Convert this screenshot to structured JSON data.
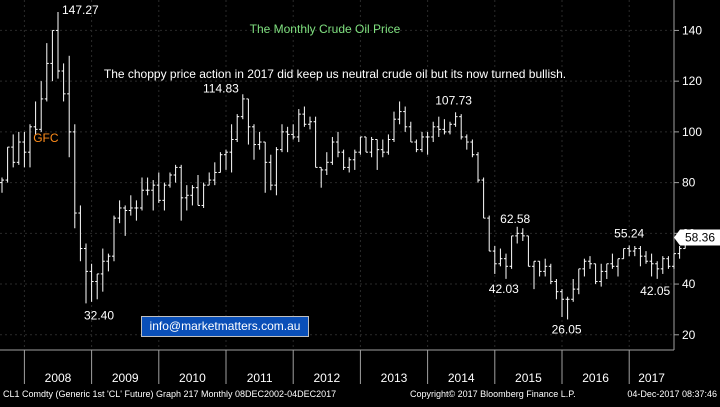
{
  "chart_data": {
    "type": "line",
    "title": "The Monthly Crude Oil Price",
    "subtitle": "The choppy price action in 2017 did keep us neutral crude oil but its now turned bullish.",
    "x_ticks": [
      "2008",
      "2009",
      "2010",
      "2011",
      "2012",
      "2013",
      "2014",
      "2015",
      "2016",
      "2017"
    ],
    "y_ticks": [
      20,
      40,
      60,
      80,
      100,
      120,
      140
    ],
    "ylim": [
      14,
      152
    ],
    "xlim": [
      "2007-09",
      "2017-12"
    ],
    "grid": true,
    "last_value": "58.36",
    "colors": {
      "price": "#ffffff",
      "title": "#7fe07f",
      "gfc": "#ff8c1a",
      "last_box": "#ffffff",
      "email_box": "#0a4fb8"
    },
    "annotations": [
      {
        "text": "147.27",
        "x": "2008-07",
        "y": 147.27
      },
      {
        "text": "GFC",
        "x": "2008-04",
        "y": 96
      },
      {
        "text": "32.40",
        "x": "2008-12",
        "y": 32.4
      },
      {
        "text": "114.83",
        "x": "2011-04",
        "y": 114.83
      },
      {
        "text": "107.73",
        "x": "2014-06",
        "y": 107.73
      },
      {
        "text": "62.58",
        "x": "2015-05",
        "y": 62.58
      },
      {
        "text": "42.03",
        "x": "2015-01",
        "y": 42.03
      },
      {
        "text": "55.24",
        "x": "2017-01",
        "y": 55.24
      },
      {
        "text": "26.05",
        "x": "2016-02",
        "y": 26.05
      },
      {
        "text": "42.05",
        "x": "2017-06",
        "y": 42.05
      }
    ],
    "series": [
      {
        "values": [
          [
            "2007-09",
            80,
            82,
            76,
            81
          ],
          [
            "2007-10",
            81,
            94,
            80,
            94
          ],
          [
            "2007-11",
            94,
            99,
            86,
            88
          ],
          [
            "2007-12",
            88,
            100,
            87,
            96
          ],
          [
            "2008-01",
            96,
            100,
            86,
            92
          ],
          [
            "2008-02",
            92,
            103,
            86,
            102
          ],
          [
            "2008-03",
            102,
            112,
            99,
            101
          ],
          [
            "2008-04",
            101,
            120,
            100,
            113
          ],
          [
            "2008-05",
            113,
            135,
            112,
            127
          ],
          [
            "2008-06",
            127,
            140,
            120,
            140
          ],
          [
            "2008-07",
            140,
            147.27,
            121,
            124
          ],
          [
            "2008-08",
            124,
            127,
            112,
            115
          ],
          [
            "2008-09",
            115,
            130,
            90,
            100
          ],
          [
            "2008-10",
            100,
            103,
            62,
            68
          ],
          [
            "2008-11",
            68,
            71,
            49,
            54
          ],
          [
            "2008-12",
            54,
            56,
            32.4,
            45
          ],
          [
            "2009-01",
            45,
            48,
            33,
            41
          ],
          [
            "2009-02",
            41,
            44,
            34,
            44
          ],
          [
            "2009-03",
            44,
            54,
            37,
            49
          ],
          [
            "2009-04",
            49,
            52,
            45,
            51
          ],
          [
            "2009-05",
            51,
            67,
            49,
            66
          ],
          [
            "2009-06",
            66,
            73,
            64,
            70
          ],
          [
            "2009-07",
            70,
            71,
            59,
            69
          ],
          [
            "2009-08",
            69,
            75,
            67,
            70
          ],
          [
            "2009-09",
            70,
            73,
            65,
            70
          ],
          [
            "2009-10",
            70,
            82,
            69,
            77
          ],
          [
            "2009-11",
            77,
            82,
            75,
            77
          ],
          [
            "2009-12",
            77,
            81,
            69,
            79
          ],
          [
            "2010-01",
            79,
            84,
            72,
            73
          ],
          [
            "2010-02",
            73,
            80,
            69,
            79
          ],
          [
            "2010-03",
            79,
            84,
            78,
            83
          ],
          [
            "2010-04",
            83,
            87,
            80,
            86
          ],
          [
            "2010-05",
            86,
            87,
            65,
            74
          ],
          [
            "2010-06",
            74,
            79,
            69,
            75
          ],
          [
            "2010-07",
            75,
            79,
            71,
            78
          ],
          [
            "2010-08",
            78,
            83,
            71,
            71
          ],
          [
            "2010-09",
            71,
            80,
            70,
            79
          ],
          [
            "2010-10",
            79,
            84,
            79,
            81
          ],
          [
            "2010-11",
            81,
            88,
            79,
            84
          ],
          [
            "2010-12",
            84,
            92,
            84,
            91
          ],
          [
            "2011-01",
            91,
            93,
            85,
            92
          ],
          [
            "2011-02",
            92,
            103,
            84,
            97
          ],
          [
            "2011-03",
            97,
            107,
            96,
            106
          ],
          [
            "2011-04",
            106,
            114.83,
            105,
            113
          ],
          [
            "2011-05",
            113,
            113,
            95,
            102
          ],
          [
            "2011-06",
            102,
            103,
            89,
            95
          ],
          [
            "2011-07",
            95,
            100,
            93,
            96
          ],
          [
            "2011-08",
            96,
            96,
            76,
            88
          ],
          [
            "2011-09",
            88,
            91,
            77,
            79
          ],
          [
            "2011-10",
            79,
            94,
            75,
            93
          ],
          [
            "2011-11",
            93,
            103,
            92,
            100
          ],
          [
            "2011-12",
            100,
            102,
            92,
            99
          ],
          [
            "2012-01",
            99,
            103,
            97,
            98
          ],
          [
            "2012-02",
            98,
            109,
            96,
            107
          ],
          [
            "2012-03",
            107,
            110,
            102,
            103
          ],
          [
            "2012-04",
            103,
            106,
            101,
            104
          ],
          [
            "2012-05",
            104,
            106,
            86,
            86
          ],
          [
            "2012-06",
            86,
            86,
            78,
            85
          ],
          [
            "2012-07",
            85,
            92,
            83,
            88
          ],
          [
            "2012-08",
            88,
            98,
            87,
            96
          ],
          [
            "2012-09",
            96,
            100,
            90,
            92
          ],
          [
            "2012-10",
            92,
            93,
            85,
            86
          ],
          [
            "2012-11",
            86,
            90,
            84,
            89
          ],
          [
            "2012-12",
            89,
            93,
            85,
            92
          ],
          [
            "2013-01",
            92,
            98,
            91,
            98
          ],
          [
            "2013-02",
            98,
            98,
            92,
            92
          ],
          [
            "2013-03",
            92,
            98,
            90,
            97
          ],
          [
            "2013-04",
            97,
            97,
            85,
            93
          ],
          [
            "2013-05",
            93,
            97,
            90,
            92
          ],
          [
            "2013-06",
            92,
            99,
            91,
            97
          ],
          [
            "2013-07",
            97,
            108,
            96,
            105
          ],
          [
            "2013-08",
            105,
            112,
            103,
            108
          ],
          [
            "2013-09",
            108,
            110,
            100,
            102
          ],
          [
            "2013-10",
            102,
            104,
            96,
            96
          ],
          [
            "2013-11",
            96,
            97,
            92,
            93
          ],
          [
            "2013-12",
            93,
            100,
            92,
            98
          ],
          [
            "2014-01",
            98,
            100,
            91,
            98
          ],
          [
            "2014-02",
            98,
            104,
            96,
            102
          ],
          [
            "2014-03",
            102,
            106,
            98,
            101
          ],
          [
            "2014-04",
            101,
            105,
            99,
            100
          ],
          [
            "2014-05",
            100,
            104,
            99,
            103
          ],
          [
            "2014-06",
            103,
            107.73,
            102,
            106
          ],
          [
            "2014-07",
            106,
            107,
            97,
            98
          ],
          [
            "2014-08",
            98,
            99,
            93,
            96
          ],
          [
            "2014-09",
            96,
            97,
            90,
            91
          ],
          [
            "2014-10",
            91,
            92,
            80,
            81
          ],
          [
            "2014-11",
            81,
            82,
            66,
            66
          ],
          [
            "2014-12",
            66,
            67,
            53,
            53
          ],
          [
            "2015-01",
            53,
            55,
            44,
            48
          ],
          [
            "2015-02",
            48,
            54,
            47,
            50
          ],
          [
            "2015-03",
            50,
            52,
            42.03,
            47
          ],
          [
            "2015-04",
            47,
            59,
            46,
            59
          ],
          [
            "2015-05",
            59,
            62.58,
            56,
            60
          ],
          [
            "2015-06",
            60,
            62,
            57,
            59
          ],
          [
            "2015-07",
            59,
            59,
            47,
            47
          ],
          [
            "2015-08",
            47,
            49,
            38,
            49
          ],
          [
            "2015-09",
            49,
            49,
            43,
            45
          ],
          [
            "2015-10",
            45,
            50,
            43,
            47
          ],
          [
            "2015-11",
            47,
            48,
            40,
            41
          ],
          [
            "2015-12",
            41,
            42,
            34,
            37
          ],
          [
            "2016-01",
            37,
            38,
            27,
            34
          ],
          [
            "2016-02",
            34,
            35,
            26.05,
            34
          ],
          [
            "2016-03",
            34,
            42,
            33,
            38
          ],
          [
            "2016-04",
            38,
            46,
            36,
            46
          ],
          [
            "2016-05",
            46,
            50,
            43,
            49
          ],
          [
            "2016-06",
            49,
            51,
            46,
            48
          ],
          [
            "2016-07",
            48,
            48,
            40,
            41
          ],
          [
            "2016-08",
            41,
            48,
            39,
            45
          ],
          [
            "2016-09",
            45,
            48,
            42,
            48
          ],
          [
            "2016-10",
            48,
            52,
            46,
            47
          ],
          [
            "2016-11",
            47,
            50,
            43,
            50
          ],
          [
            "2016-12",
            50,
            54,
            50,
            54
          ],
          [
            "2017-01",
            54,
            55.24,
            51,
            53
          ],
          [
            "2017-02",
            53,
            55,
            51,
            54
          ],
          [
            "2017-03",
            54,
            55,
            47,
            51
          ],
          [
            "2017-04",
            51,
            53,
            48,
            49
          ],
          [
            "2017-05",
            49,
            52,
            43,
            48
          ],
          [
            "2017-06",
            48,
            49,
            42.05,
            46
          ],
          [
            "2017-07",
            46,
            51,
            44,
            50
          ],
          [
            "2017-08",
            50,
            51,
            46,
            47
          ],
          [
            "2017-09",
            47,
            52,
            46,
            52
          ],
          [
            "2017-10",
            52,
            55,
            50,
            54
          ],
          [
            "2017-11",
            54,
            59,
            54,
            57
          ],
          [
            "2017-12",
            57,
            59,
            57,
            58.36
          ]
        ]
      }
    ]
  },
  "contact": {
    "email": "info@marketmatters.com.au"
  },
  "footer": {
    "left": "CL1 Comdty (Generic 1st 'CL' Future) Graph 217  Monthly 08DEC2002-04DEC2017",
    "center": "Copyright© 2017 Bloomberg Finance L.P.",
    "right": "04-Dec-2017 08:37:46"
  }
}
